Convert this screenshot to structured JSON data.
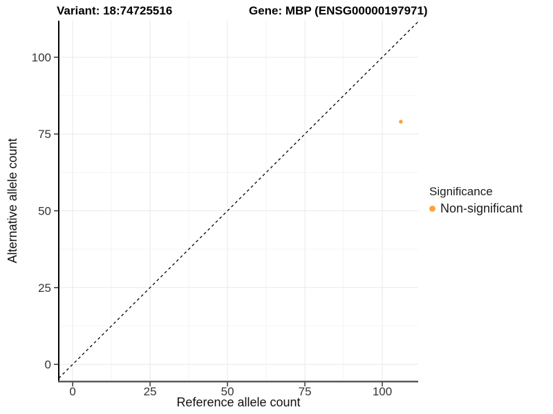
{
  "titles": {
    "variant": "Variant: 18:74725516",
    "gene": "Gene: MBP (ENSG00000197971)"
  },
  "chart_data": {
    "type": "scatter",
    "xlabel": "Reference allele count",
    "ylabel": "Alternative allele count",
    "xlim": [
      -4.5,
      111.6
    ],
    "ylim": [
      -5.6,
      111.9
    ],
    "xticks": [
      0,
      25,
      50,
      75,
      100
    ],
    "yticks": [
      0,
      25,
      50,
      75,
      100
    ],
    "minor_step": 12.5,
    "grid": "major+minor",
    "identity_line": {
      "type": "y=x",
      "style": "dashed",
      "color": "#000000"
    },
    "points": [
      {
        "x": 106,
        "y": 79,
        "series": "Non-significant",
        "color": "#FAA43A"
      }
    ],
    "legend": {
      "title": "Significance",
      "position": "right",
      "entries": [
        {
          "label": "Non-significant",
          "color": "#FAA43A"
        }
      ]
    },
    "colors": {
      "point": "#FAA43A",
      "grid_major": "#E8E8E8",
      "grid_minor": "#F4F4F4",
      "axis_line_left": "#000000",
      "axis_line_bottom": "#595959",
      "tick_mark": "#333333",
      "tick_label": "#333333",
      "background": "#FFFFFF"
    }
  }
}
